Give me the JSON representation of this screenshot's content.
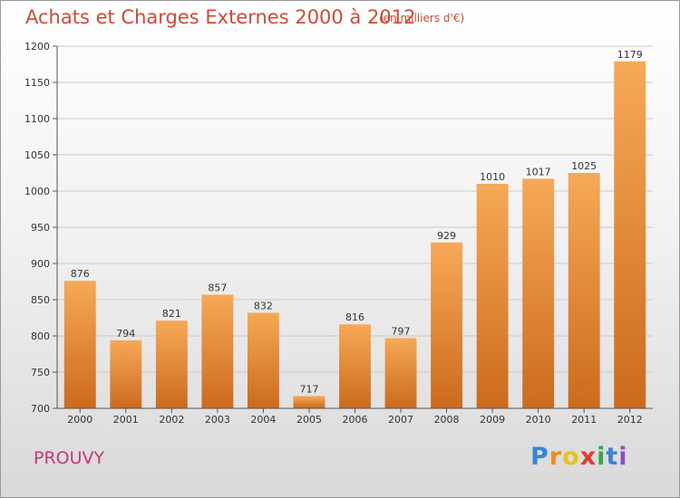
{
  "title": "Achats et Charges Externes 2000 à 2012",
  "subtitle": "(en milliers d'€)",
  "commune": "PROUVY",
  "logo": {
    "letters": [
      "P",
      "r",
      "o",
      "x",
      "i",
      "t",
      "i"
    ],
    "colors": [
      "#3a86d6",
      "#f08b1c",
      "#e8c21b",
      "#e23b2e",
      "#36a84a",
      "#3a86d6",
      "#8a4fc4"
    ]
  },
  "colors": {
    "bar_top": "#f6a957",
    "bar_bottom": "#cc6a1c",
    "title": "#d14a35"
  },
  "chart_data": {
    "type": "bar",
    "title": "Achats et Charges Externes 2000 à 2012",
    "subtitle": "(en milliers d'€)",
    "categories": [
      "2000",
      "2001",
      "2002",
      "2003",
      "2004",
      "2005",
      "2006",
      "2007",
      "2008",
      "2009",
      "2010",
      "2011",
      "2012"
    ],
    "values": [
      876,
      794,
      821,
      857,
      832,
      717,
      816,
      797,
      929,
      1010,
      1017,
      1025,
      1179
    ],
    "ylim": [
      700,
      1200
    ],
    "yticks": [
      700,
      750,
      800,
      850,
      900,
      950,
      1000,
      1050,
      1100,
      1150,
      1200
    ],
    "grid": true,
    "legend": "none"
  }
}
